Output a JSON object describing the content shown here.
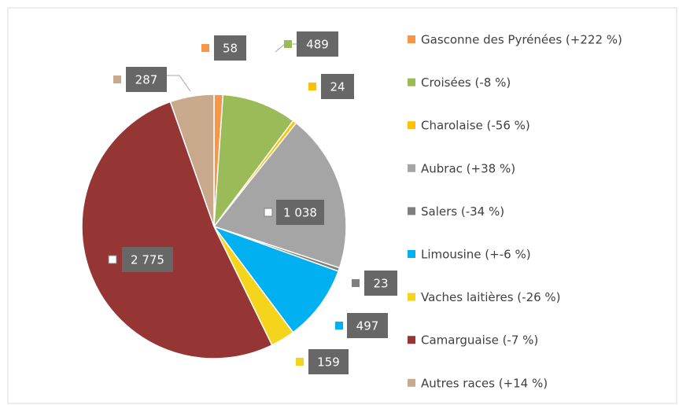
{
  "chart_data": {
    "type": "pie",
    "categories": [
      "Gasconne des Pyrénées (+222 %)",
      "Croisées (-8 %)",
      "Charolaise (-56 %)",
      "Aubrac (+38 %)",
      "Salers (-34 %)",
      "Limousine (+-6 %)",
      "Vaches laitières (-26 %)",
      "Camarguaise (-7 %)",
      "Autres races (+14 %)"
    ],
    "values": [
      58,
      489,
      24,
      1038,
      23,
      497,
      159,
      2775,
      287
    ],
    "value_labels": [
      "58",
      "489",
      "24",
      "1 038",
      "23",
      "497",
      "159",
      "2 775",
      "287"
    ],
    "colors": [
      "#f79646",
      "#9bbb59",
      "#ffc000",
      "#a5a5a5",
      "#7f7f7f",
      "#00b0f0",
      "#f5d51c",
      "#963634",
      "#c9a98b"
    ],
    "legend": "right"
  }
}
